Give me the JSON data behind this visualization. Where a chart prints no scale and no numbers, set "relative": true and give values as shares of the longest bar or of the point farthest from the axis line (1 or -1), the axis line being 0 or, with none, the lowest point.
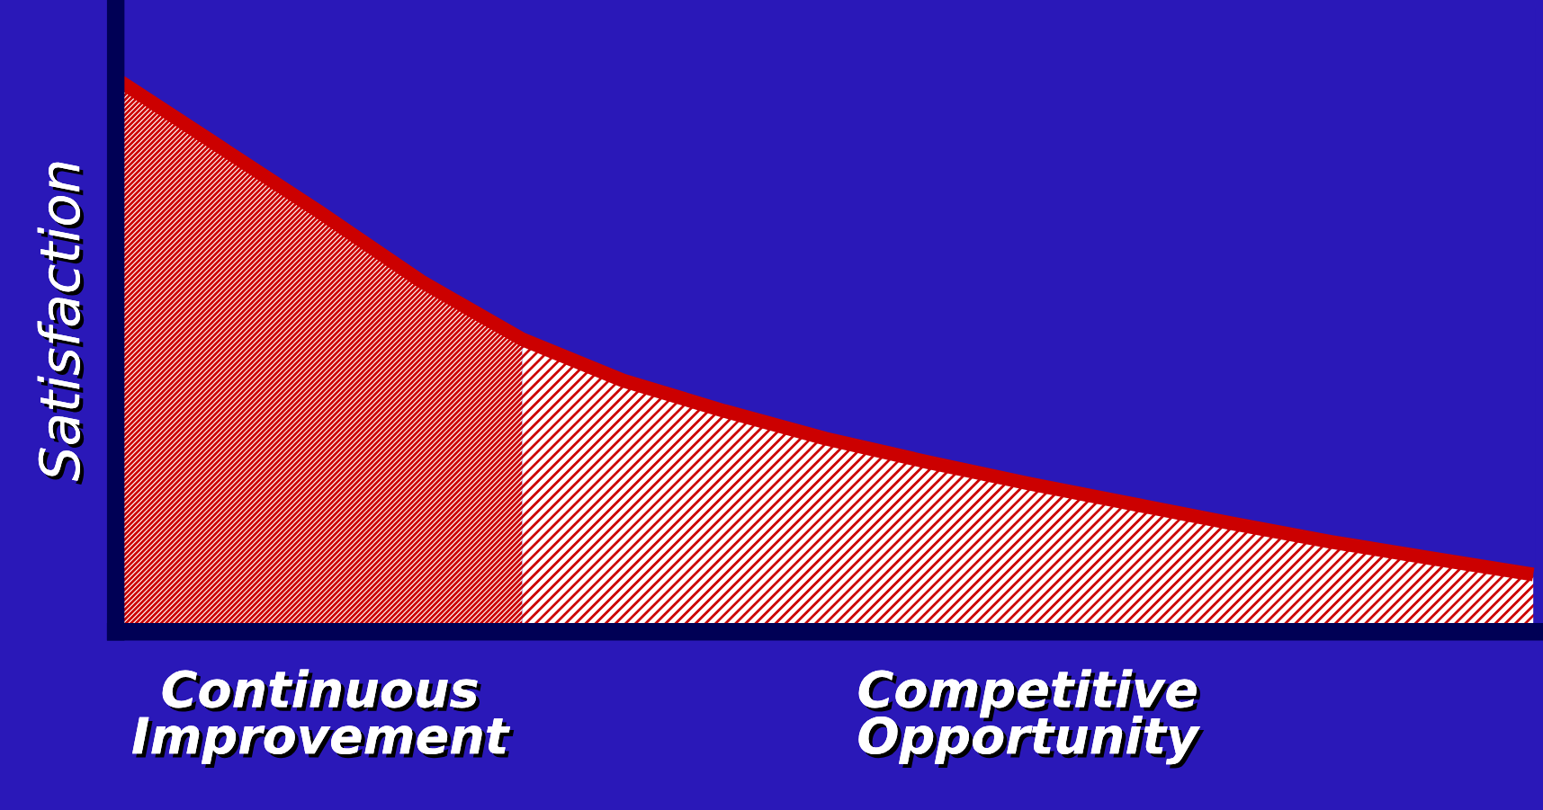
{
  "chart_data": {
    "type": "area",
    "relative": true,
    "ylabel": "Satisfaction",
    "categories": [
      null,
      null,
      null,
      null,
      null,
      null,
      null,
      null,
      null,
      null,
      null,
      null,
      null,
      null,
      null
    ],
    "series": [
      {
        "name": "Continuous Improvement",
        "color": "#cc0000",
        "values": [
          1.0,
          0.88,
          0.76,
          0.635,
          0.53,
          null,
          null,
          null,
          null,
          null,
          null,
          null,
          null,
          null,
          null
        ]
      },
      {
        "name": "Competitive Opportunity",
        "color": "#cc0000",
        "values": [
          null,
          null,
          null,
          null,
          0.53,
          0.455,
          0.4,
          0.35,
          0.308,
          0.269,
          0.233,
          0.197,
          0.163,
          0.133,
          0.104
        ]
      },
      {
        "type": "line",
        "color": "#cc0000",
        "values": [
          1.0,
          0.88,
          0.76,
          0.635,
          0.53,
          0.455,
          0.4,
          0.35,
          0.308,
          0.269,
          0.233,
          0.197,
          0.163,
          0.133,
          0.104
        ]
      }
    ],
    "legend": false,
    "tick_labels": false
  }
}
